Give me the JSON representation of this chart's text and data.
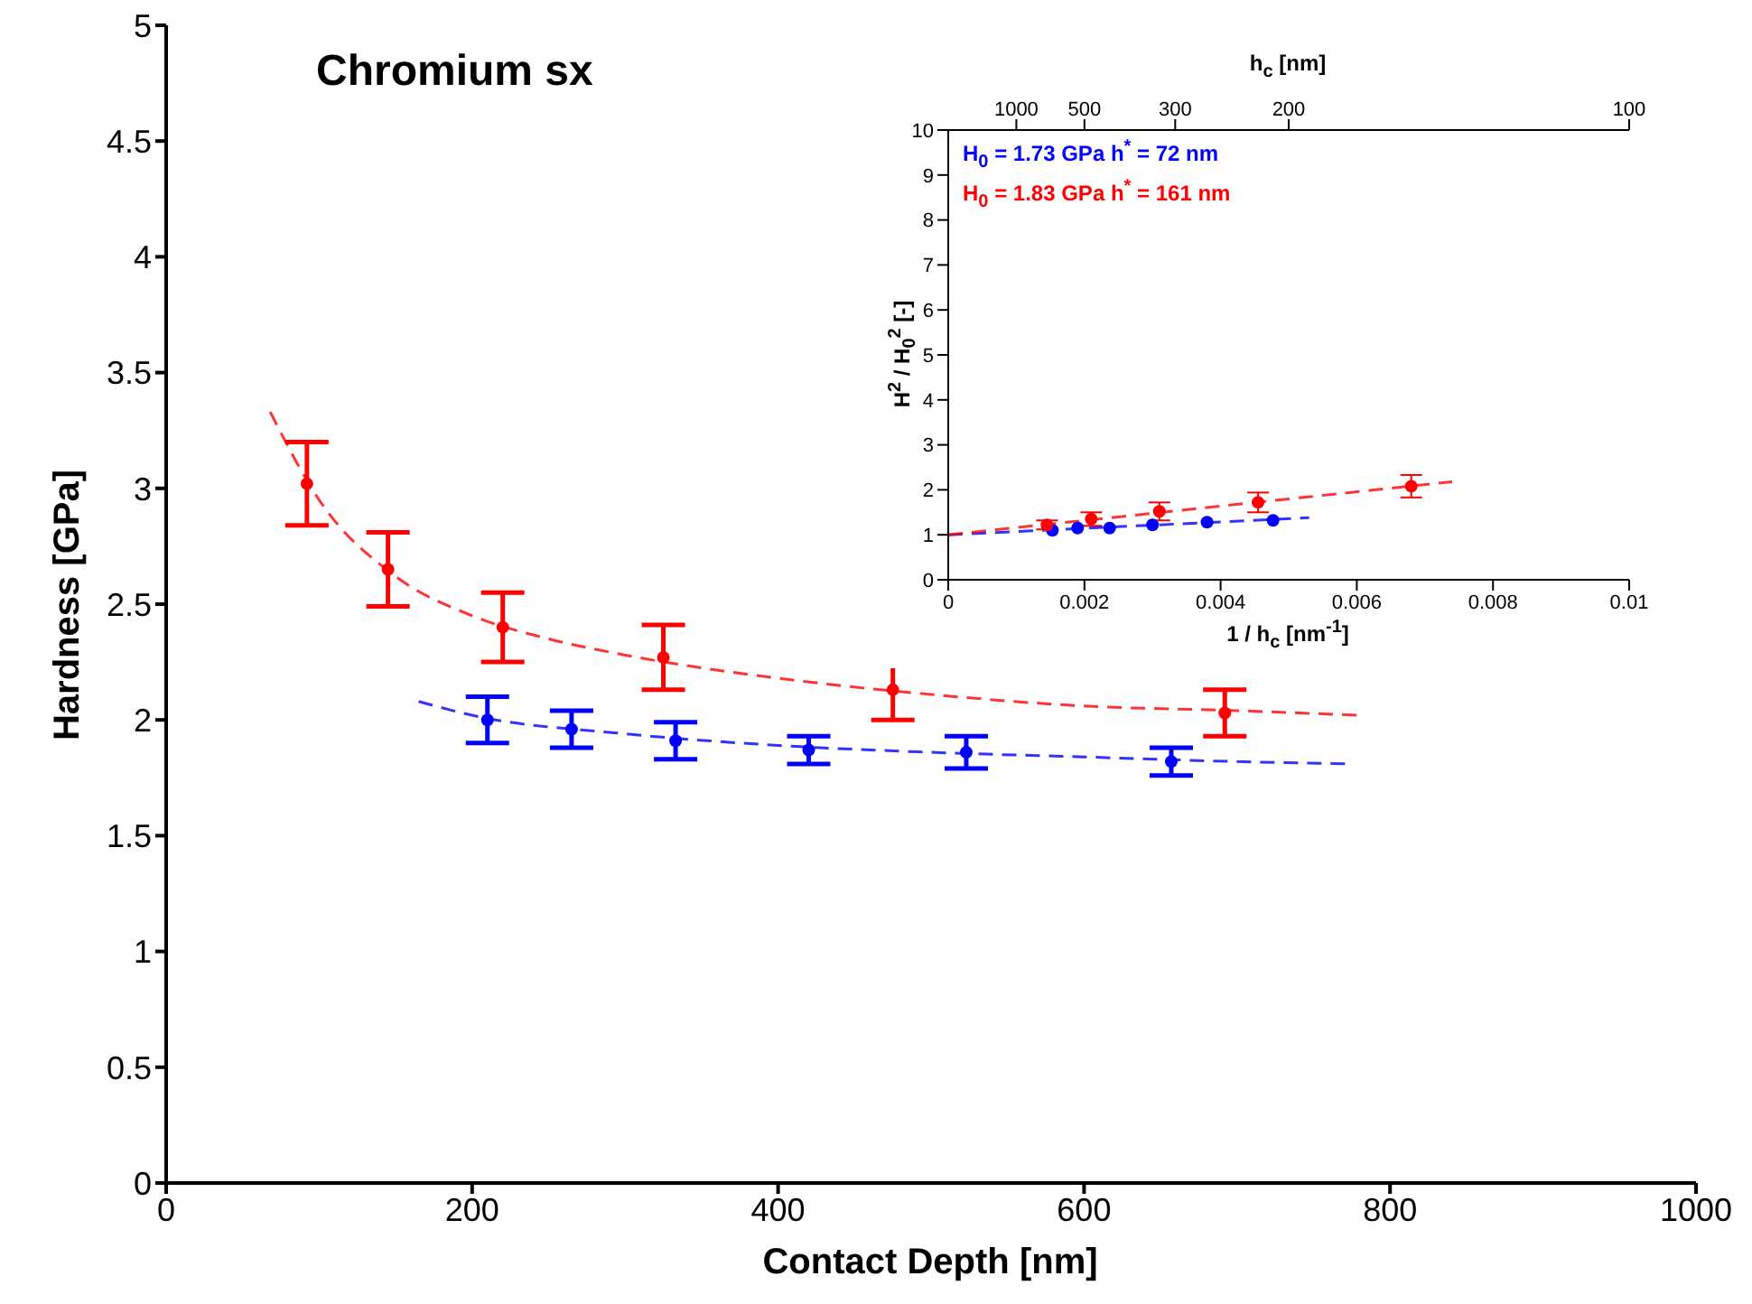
{
  "chart_data": [
    {
      "type": "scatter",
      "title": "Chromium sx",
      "xlabel": "Contact Depth [nm]",
      "ylabel": "Hardness [GPa]",
      "xlim": [
        0,
        1000
      ],
      "xticks": [
        0,
        200,
        400,
        600,
        800,
        1000
      ],
      "ylim": [
        0,
        5
      ],
      "yticks": [
        0,
        0.5,
        1,
        1.5,
        2,
        2.5,
        3,
        3.5,
        4,
        4.5,
        5
      ],
      "marker": "circle",
      "series": [
        {
          "color": "#0000ff",
          "x": [
            210,
            265,
            333,
            420,
            523,
            657
          ],
          "values": [
            2.0,
            1.96,
            1.91,
            1.87,
            1.86,
            1.82
          ],
          "errors": [
            0.1,
            0.08,
            0.08,
            0.06,
            0.07,
            0.06
          ]
        },
        {
          "color": "#ff0000",
          "x": [
            92,
            145,
            220,
            325,
            475,
            692
          ],
          "values": [
            3.02,
            2.65,
            2.4,
            2.27,
            2.13,
            2.03
          ],
          "errors": [
            0.18,
            0.16,
            0.15,
            0.14,
            0.13,
            0.1
          ]
        },
        {
          "type": "line",
          "color": "#0000ff",
          "line_style": "dashed",
          "marker": "none",
          "x": [
            165,
            200,
            300,
            400,
            500,
            600,
            700,
            775
          ],
          "values": [
            2.08,
            2.02,
            1.94,
            1.89,
            1.86,
            1.84,
            1.82,
            1.81
          ]
        },
        {
          "type": "line",
          "color": "#ff0000",
          "line_style": "dashed",
          "marker": "none",
          "x": [
            68,
            100,
            150,
            200,
            250,
            300,
            400,
            500,
            600,
            700,
            780
          ],
          "values": [
            3.33,
            2.95,
            2.62,
            2.45,
            2.35,
            2.28,
            2.18,
            2.11,
            2.06,
            2.04,
            2.02
          ]
        }
      ]
    },
    {
      "type": "scatter",
      "xlabel": "1 / h$_{c}$ [nm$^{-1}$]",
      "ylabel": "H$^{2}$ / H$_{0}$$^{2}$ [-]",
      "xlim": [
        0,
        0.01
      ],
      "xticks": [
        0,
        0.002,
        0.004,
        0.006,
        0.008,
        0.01
      ],
      "ylim": [
        0,
        10
      ],
      "yticks": [
        0,
        1,
        2,
        3,
        4,
        5,
        6,
        7,
        8,
        9,
        10
      ],
      "marker": "circle",
      "annotations": [
        "H$_{0}$ = 1.73 GPa   h$^{*}$ = 72 nm",
        "H$_{0}$ = 1.83 GPa   h$^{*}$ = 161 nm",
        "h$_{c}$ [nm]",
        "1000",
        "500",
        "300",
        "200",
        "100"
      ],
      "series": [
        {
          "color": "#0000ff",
          "x": [
            0.00153,
            0.0019,
            0.00237,
            0.003,
            0.0038,
            0.00477
          ],
          "values": [
            1.1,
            1.15,
            1.15,
            1.22,
            1.28,
            1.32
          ]
        },
        {
          "color": "#ff0000",
          "x": [
            0.00145,
            0.0021,
            0.0031,
            0.00455,
            0.0068
          ],
          "values": [
            1.22,
            1.35,
            1.52,
            1.72,
            2.08
          ],
          "errors": [
            0.1,
            0.15,
            0.2,
            0.22,
            0.25
          ]
        },
        {
          "type": "line",
          "color": "#0000ff",
          "line_style": "dashed",
          "marker": "none",
          "x": [
            0,
            0.0053
          ],
          "values": [
            1.0,
            1.38
          ]
        },
        {
          "type": "line",
          "color": "#ff0000",
          "line_style": "dashed",
          "marker": "none",
          "x": [
            0,
            0.0074
          ],
          "values": [
            1.0,
            2.18
          ]
        }
      ]
    }
  ]
}
